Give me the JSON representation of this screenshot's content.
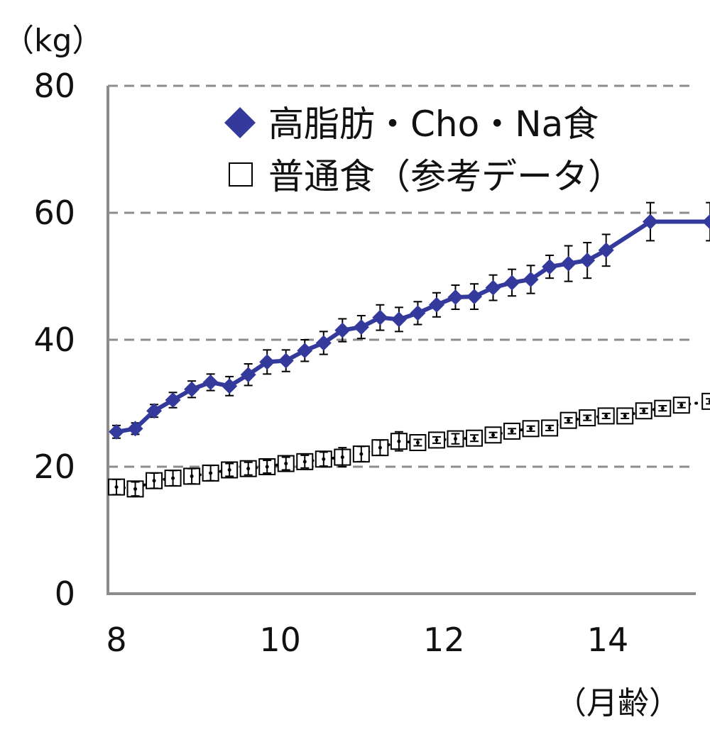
{
  "chart_data": {
    "type": "line",
    "y_unit": "（kg）",
    "x_unit": "（月齢）",
    "xlim": [
      8,
      15.3
    ],
    "ylim": [
      0,
      80
    ],
    "x_ticks": [
      "8",
      "10",
      "12",
      "14"
    ],
    "y_ticks": [
      "0",
      "20",
      "40",
      "60",
      "80"
    ],
    "grid": "horizontal-dashed",
    "legend_position": "top-right",
    "colors": {
      "series1": "#343a9c",
      "series2": "#000000",
      "axis": "#8c8c8c",
      "grid": "#8c8c8c"
    },
    "series": [
      {
        "name": "高脂肪・Cho・Na食",
        "marker": "diamond",
        "x": [
          8.0,
          8.23,
          8.46,
          8.69,
          8.92,
          9.15,
          9.38,
          9.61,
          9.84,
          10.07,
          10.3,
          10.53,
          10.76,
          10.99,
          11.22,
          11.45,
          11.68,
          11.91,
          12.14,
          12.37,
          12.6,
          12.83,
          13.06,
          13.29,
          13.52,
          13.75,
          13.98,
          14.52,
          15.25
        ],
        "values": [
          25.5,
          26.0,
          28.8,
          30.5,
          32.2,
          33.3,
          32.7,
          34.5,
          36.5,
          36.7,
          38.3,
          39.5,
          41.5,
          42.0,
          43.5,
          43.2,
          44.2,
          45.5,
          46.7,
          46.8,
          48.2,
          49.0,
          49.5,
          51.5,
          52.0,
          52.5,
          54.1,
          58.6,
          58.6
        ],
        "error": [
          1.0,
          0.9,
          1.0,
          1.2,
          1.3,
          1.3,
          1.5,
          1.7,
          1.9,
          1.7,
          1.7,
          1.8,
          1.8,
          1.8,
          2.0,
          1.9,
          1.8,
          1.9,
          1.9,
          2.0,
          2.0,
          2.1,
          2.2,
          1.8,
          2.8,
          2.8,
          2.5,
          3.0,
          3.0
        ]
      },
      {
        "name": "普通食（参考データ）",
        "marker": "square-open",
        "x": [
          8.0,
          8.23,
          8.46,
          8.69,
          8.92,
          9.15,
          9.38,
          9.61,
          9.84,
          10.07,
          10.3,
          10.53,
          10.76,
          10.99,
          11.22,
          11.45,
          11.68,
          11.91,
          12.14,
          12.37,
          12.6,
          12.83,
          13.06,
          13.29,
          13.52,
          13.75,
          13.98,
          14.21,
          14.44,
          14.67,
          14.9,
          15.25
        ],
        "values": [
          16.8,
          16.5,
          17.8,
          18.2,
          18.5,
          19.0,
          19.5,
          19.7,
          20.0,
          20.5,
          20.8,
          21.2,
          21.5,
          22.0,
          23.0,
          24.0,
          23.8,
          24.2,
          24.4,
          24.5,
          25.0,
          25.6,
          26.0,
          26.1,
          27.3,
          27.7,
          28.0,
          28.0,
          28.8,
          29.2,
          29.7,
          30.3
        ],
        "error": [
          1.2,
          1.1,
          1.2,
          1.2,
          1.2,
          1.2,
          1.0,
          1.0,
          1.0,
          1.0,
          1.0,
          1.1,
          1.5,
          1.2,
          1.2,
          1.5,
          0.5,
          0.5,
          0.8,
          0.5,
          0.4,
          0.4,
          0.4,
          0.4,
          0.4,
          0.4,
          0.4,
          0.4,
          0.4,
          0.4,
          0.4,
          0.4
        ]
      }
    ]
  }
}
